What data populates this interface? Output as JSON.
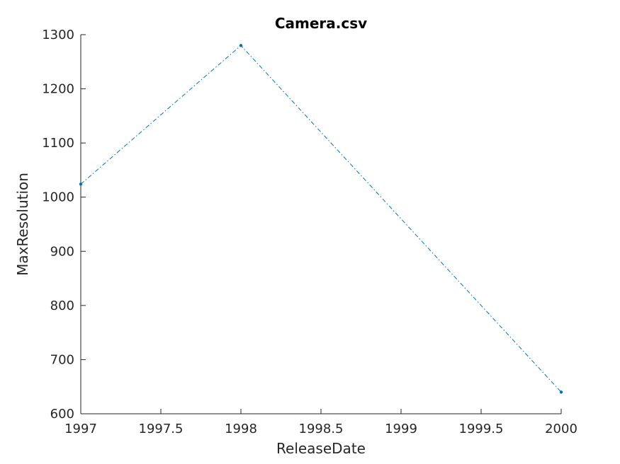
{
  "chart_data": {
    "type": "line",
    "title": "Camera.csv",
    "xlabel": "ReleaseDate",
    "ylabel": "MaxResolution",
    "xlim": [
      1997,
      2000
    ],
    "ylim": [
      600,
      1300
    ],
    "xticks": [
      1997,
      1997.5,
      1998,
      1998.5,
      1999,
      1999.5,
      2000
    ],
    "xtick_labels": [
      "1997",
      "1997.5",
      "1998",
      "1998.5",
      "1999",
      "1999.5",
      "2000"
    ],
    "yticks": [
      600,
      700,
      800,
      900,
      1000,
      1100,
      1200,
      1300
    ],
    "ytick_labels": [
      "600",
      "700",
      "800",
      "900",
      "1000",
      "1100",
      "1200",
      "1300"
    ],
    "grid": false,
    "series": [
      {
        "name": "MaxResolution",
        "color": "#0072BD",
        "line_style": "dash-dot",
        "marker": "dot",
        "x": [
          1997,
          1998,
          2000
        ],
        "y": [
          1024,
          1280,
          640
        ]
      }
    ]
  }
}
